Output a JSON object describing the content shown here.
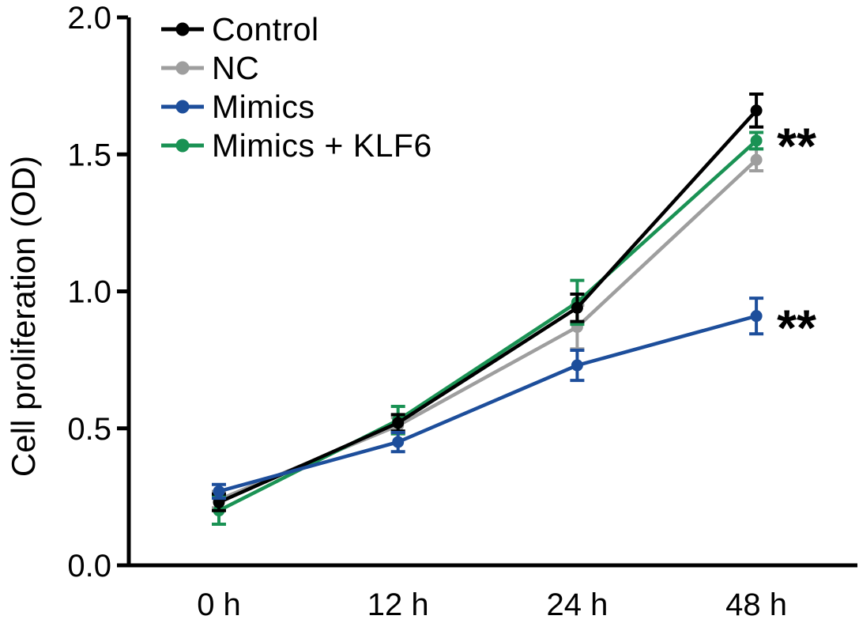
{
  "figure": {
    "background": "#ffffff",
    "axis_color": "#000000",
    "text_color": "#000000"
  },
  "chart_data": {
    "type": "line",
    "title": "",
    "xlabel": "",
    "ylabel": "Cell proliferation (OD)",
    "categories": [
      "0 h",
      "12 h",
      "24 h",
      "48 h"
    ],
    "ylim": [
      0,
      2
    ],
    "yticks": [
      "0.0",
      "0.5",
      "1.0",
      "1.5",
      "2.0"
    ],
    "grid": false,
    "legend_position": "top-left",
    "series": [
      {
        "name": "Control",
        "color": "#000000",
        "values": [
          0.23,
          0.52,
          0.94,
          1.66
        ],
        "errors": [
          0.03,
          0.03,
          0.05,
          0.06
        ]
      },
      {
        "name": "NC",
        "color": "#9e9e9e",
        "values": [
          0.24,
          0.51,
          0.87,
          1.48
        ],
        "errors": [
          0.03,
          0.03,
          0.08,
          0.04
        ]
      },
      {
        "name": "Mimics",
        "color": "#1d4e9b",
        "values": [
          0.27,
          0.45,
          0.73,
          0.91
        ],
        "errors": [
          0.025,
          0.035,
          0.055,
          0.065
        ]
      },
      {
        "name": "Mimics + KLF6",
        "color": "#1a9254",
        "values": [
          0.2,
          0.53,
          0.96,
          1.55
        ],
        "errors": [
          0.05,
          0.05,
          0.08,
          0.03
        ]
      }
    ],
    "annotations": [
      {
        "text": "**",
        "x_category": "48 h",
        "y": 1.575,
        "color": "#000000"
      },
      {
        "text": "**",
        "x_category": "48 h",
        "y": 0.91,
        "color": "#000000"
      }
    ]
  }
}
